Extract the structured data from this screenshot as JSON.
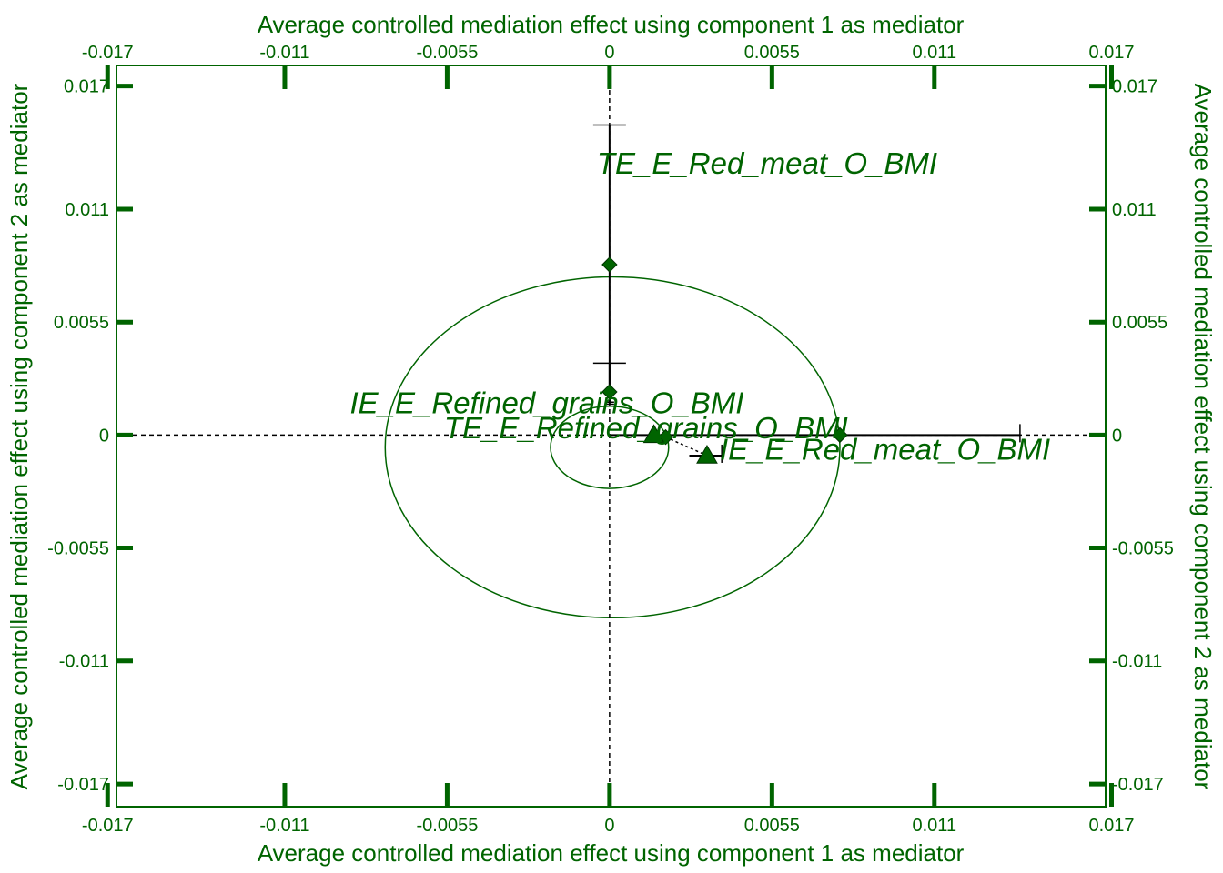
{
  "chart_data": {
    "type": "scatter",
    "xlabel": "Average controlled mediation effect using component 1 as mediator",
    "ylabel": "Average controlled mediation effect using component 2 as mediator",
    "xlim": [
      -0.0167,
      0.0168
    ],
    "ylim": [
      -0.0181,
      0.018
    ],
    "x_ticks": [
      -0.017,
      -0.011,
      -0.0055,
      0,
      0.0055,
      0.011,
      0.017
    ],
    "x_tick_labels": [
      "-0.017",
      "-0.011",
      "-0.0055",
      "0",
      "0.0055",
      "0.011",
      "0.017"
    ],
    "y_ticks": [
      -0.017,
      -0.011,
      -0.0055,
      0,
      0.0055,
      0.011,
      0.017
    ],
    "y_tick_labels": [
      "-0.017",
      "-0.011",
      "-0.0055",
      "0",
      "0.0055",
      "0.011",
      "0.017"
    ],
    "grid": false,
    "ellipses": [
      {
        "cx": 0.0001,
        "cy": -0.0006,
        "rx": 0.0077,
        "ry": 0.0083
      },
      {
        "cx": 0.0,
        "cy": -0.0006,
        "rx": 0.002,
        "ry": 0.002
      }
    ],
    "points": [
      {
        "label": "TE_E_Red_meat_O_BMI",
        "marker": "diamond",
        "x": 0.0,
        "y": 0.0083,
        "err_y": [
          0.0015,
          0.0151
        ]
      },
      {
        "label": "TE_E_Refined_grains_O_BMI",
        "marker": "diamond",
        "x": 0.0,
        "y": 0.0021,
        "err_y": [
          0.0016,
          0.0035
        ]
      },
      {
        "label": "IE_E_Red_meat_O_BMI",
        "marker": "diamond",
        "x": 0.0078,
        "y": 0.0,
        "err_x": [
          0.0,
          0.0139
        ]
      },
      {
        "label": "IE_E_Refined_grains_O_BMI",
        "marker": "diamond",
        "x": 0.0019,
        "y": -0.0001
      },
      {
        "marker": "triangle",
        "x": 0.0015,
        "y": 0.0
      },
      {
        "marker": "triangle",
        "x": 0.0033,
        "y": -0.001,
        "err_x": [
          0.0027,
          0.0038
        ]
      }
    ],
    "connectors": [
      {
        "from": [
          0.0019,
          -0.0001
        ],
        "to": [
          0.0033,
          -0.001
        ]
      }
    ]
  }
}
